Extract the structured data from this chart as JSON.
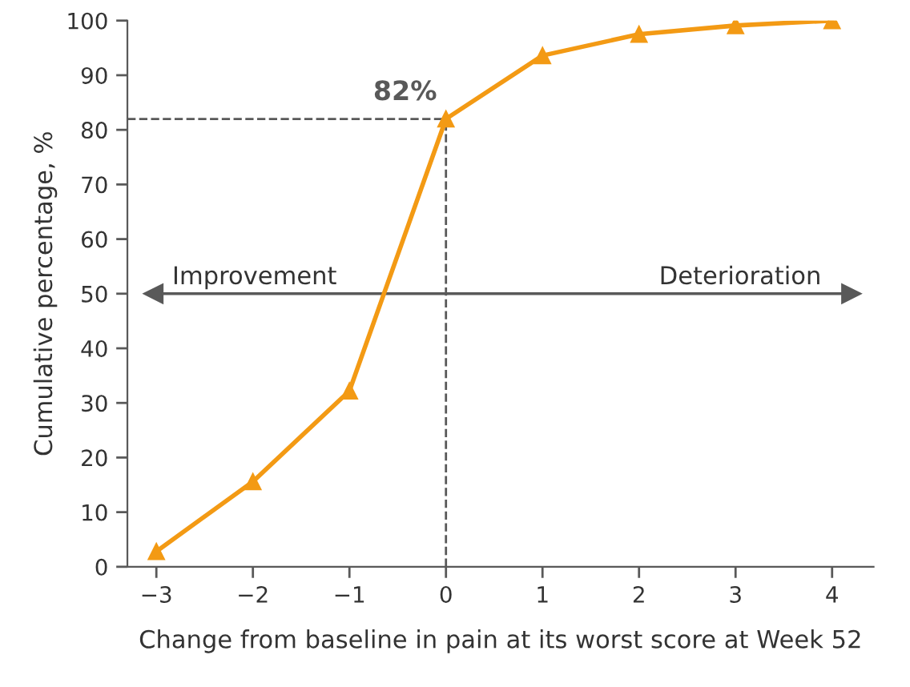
{
  "chart_data": {
    "type": "line",
    "x": [
      -3,
      -2,
      -1,
      0,
      1,
      2,
      3,
      4
    ],
    "series": [
      {
        "color": "#f39a14",
        "values": [
          2.8,
          15.6,
          32.2,
          82,
          93.6,
          97.5,
          99.1,
          100
        ],
        "value_labels": [
          null,
          null,
          null,
          "82%",
          null,
          null,
          null,
          null
        ]
      }
    ],
    "marker": "triangle",
    "line_style": "solid",
    "xlabel": "Change from baseline in pain at its worst score at Week 52",
    "ylabel": "Cumulative percentage, %",
    "xlim": [
      -3.3,
      4.43
    ],
    "ylim": [
      0,
      100
    ],
    "xticks": [
      {
        "value": -3,
        "label": "−3"
      },
      {
        "value": -2,
        "label": "−2"
      },
      {
        "value": -1,
        "label": "−1"
      },
      0,
      1,
      2,
      3,
      4
    ],
    "yticks": [
      0,
      10,
      20,
      30,
      40,
      50,
      60,
      70,
      80,
      90,
      100
    ],
    "tick_labels": "xy",
    "ref_lines": [
      {
        "axis": "x",
        "value": 0,
        "line_style": "dashed",
        "color": "#595959"
      },
      {
        "axis": "y",
        "value": 82,
        "line_style": "dashed",
        "color": "#595959"
      },
      {
        "axis": "y",
        "value": 50,
        "line_style": "solid",
        "color": "#595959"
      }
    ],
    "annotations": [
      "Improvement",
      "Deterioration"
    ],
    "grid": false
  }
}
